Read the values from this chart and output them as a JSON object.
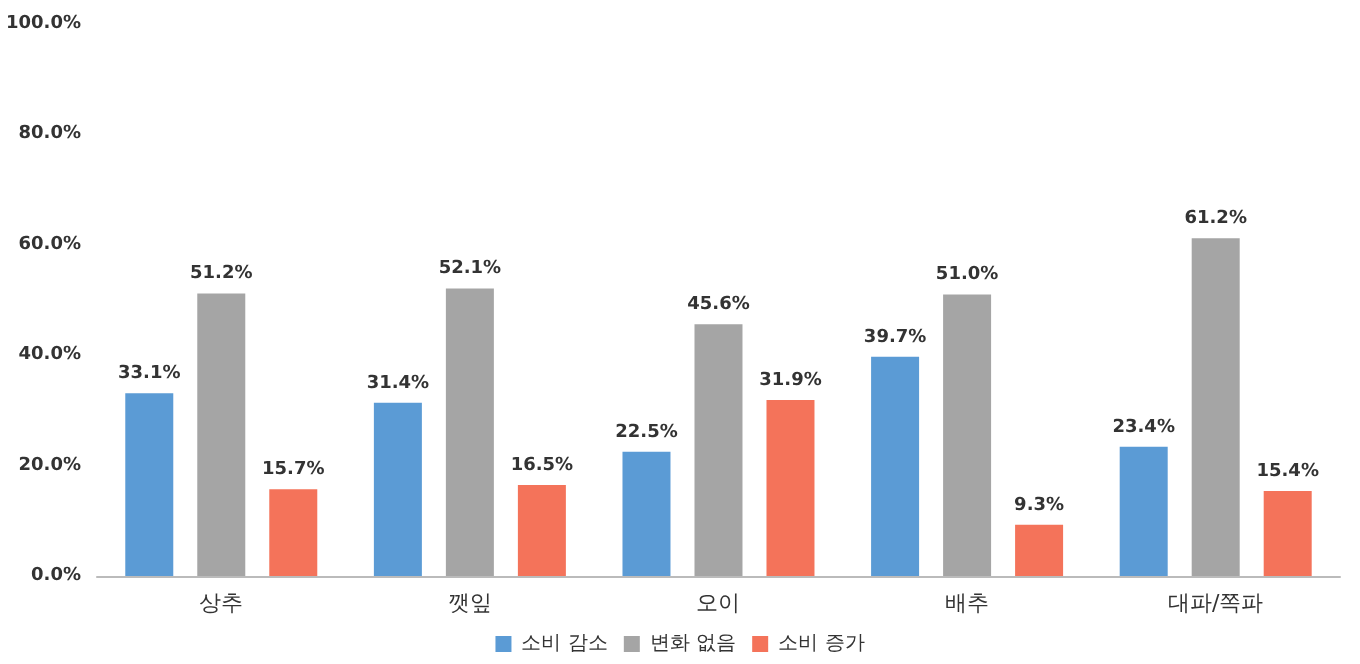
{
  "chart_data": {
    "type": "bar",
    "categories": [
      "상추",
      "깻잎",
      "오이",
      "배추",
      "대파/쪽파"
    ],
    "series": [
      {
        "name": "소비 감소",
        "color": "#5b9bd5",
        "values": [
          33.1,
          31.4,
          22.5,
          39.7,
          23.4
        ],
        "value_labels": [
          "33.1%",
          "31.4%",
          "22.5%",
          "39.7%",
          "23.4%"
        ]
      },
      {
        "name": "변화 없음",
        "color": "#a5a5a5",
        "values": [
          51.2,
          52.1,
          45.6,
          51.0,
          61.2
        ],
        "value_labels": [
          "51.2%",
          "52.1%",
          "45.6%",
          "51.0%",
          "61.2%"
        ]
      },
      {
        "name": "소비 증가",
        "color": "#f4735a",
        "values": [
          15.7,
          16.5,
          31.9,
          9.3,
          15.4
        ],
        "value_labels": [
          "15.7%",
          "16.5%",
          "31.9%",
          "9.3%",
          "15.4%"
        ]
      }
    ],
    "ylim": [
      0,
      100
    ],
    "yticks": [
      {
        "value": 0,
        "label": "0.0%"
      },
      {
        "value": 20,
        "label": "20.0%"
      },
      {
        "value": 40,
        "label": "40.0%"
      },
      {
        "value": 60,
        "label": "60.0%"
      },
      {
        "value": 80,
        "label": "80.0%"
      },
      {
        "value": 100,
        "label": "100.0%"
      }
    ],
    "grid": false,
    "legend": "bottom"
  }
}
